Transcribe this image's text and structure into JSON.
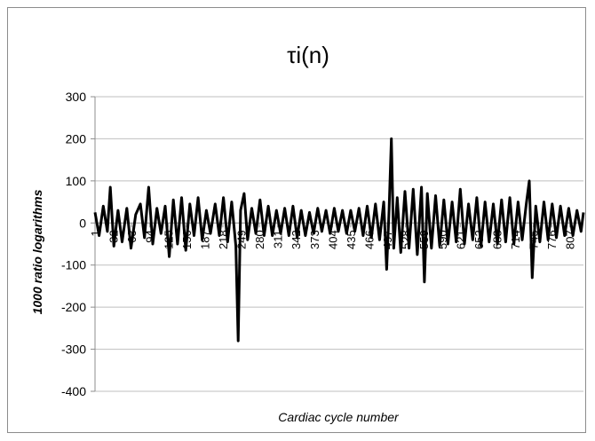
{
  "chart_data": {
    "type": "line",
    "title": "τi(n)",
    "xlabel": "Cardiac cycle number",
    "ylabel": "1000 ratio logarithms",
    "ylim": [
      -400,
      300
    ],
    "y_ticks": [
      300,
      200,
      100,
      0,
      -100,
      -200,
      -300,
      -400
    ],
    "x_tick_labels": [
      "1",
      "32",
      "63",
      "94",
      "125",
      "156",
      "187",
      "218",
      "249",
      "280",
      "311",
      "342",
      "373",
      "404",
      "435",
      "466",
      "497",
      "528",
      "559",
      "590",
      "621",
      "652",
      "683",
      "714",
      "745",
      "776",
      "807"
    ],
    "x_range": [
      1,
      830
    ],
    "grid": "horizontal",
    "legend": "none",
    "series": [
      {
        "color": "#000000",
        "points": [
          [
            1,
            25
          ],
          [
            8,
            -30
          ],
          [
            15,
            40
          ],
          [
            22,
            -20
          ],
          [
            27,
            85
          ],
          [
            33,
            -55
          ],
          [
            40,
            30
          ],
          [
            47,
            -45
          ],
          [
            55,
            35
          ],
          [
            62,
            -60
          ],
          [
            70,
            20
          ],
          [
            78,
            45
          ],
          [
            85,
            -35
          ],
          [
            92,
            85
          ],
          [
            99,
            -50
          ],
          [
            106,
            35
          ],
          [
            113,
            -25
          ],
          [
            120,
            40
          ],
          [
            127,
            -80
          ],
          [
            134,
            55
          ],
          [
            141,
            -50
          ],
          [
            148,
            60
          ],
          [
            155,
            -65
          ],
          [
            162,
            45
          ],
          [
            169,
            -30
          ],
          [
            176,
            60
          ],
          [
            183,
            -40
          ],
          [
            190,
            30
          ],
          [
            197,
            -25
          ],
          [
            205,
            45
          ],
          [
            212,
            -30
          ],
          [
            219,
            60
          ],
          [
            226,
            -45
          ],
          [
            233,
            50
          ],
          [
            240,
            -55
          ],
          [
            244,
            -280
          ],
          [
            248,
            30
          ],
          [
            254,
            70
          ],
          [
            260,
            -40
          ],
          [
            267,
            35
          ],
          [
            274,
            -25
          ],
          [
            281,
            55
          ],
          [
            288,
            -30
          ],
          [
            295,
            40
          ],
          [
            302,
            -30
          ],
          [
            309,
            30
          ],
          [
            316,
            -25
          ],
          [
            323,
            35
          ],
          [
            330,
            -30
          ],
          [
            337,
            40
          ],
          [
            344,
            -35
          ],
          [
            351,
            30
          ],
          [
            358,
            -30
          ],
          [
            365,
            25
          ],
          [
            372,
            -25
          ],
          [
            379,
            35
          ],
          [
            386,
            -20
          ],
          [
            393,
            30
          ],
          [
            400,
            -25
          ],
          [
            407,
            35
          ],
          [
            414,
            -20
          ],
          [
            421,
            30
          ],
          [
            428,
            -25
          ],
          [
            435,
            30
          ],
          [
            442,
            -20
          ],
          [
            449,
            35
          ],
          [
            456,
            -30
          ],
          [
            463,
            40
          ],
          [
            470,
            -35
          ],
          [
            477,
            45
          ],
          [
            484,
            -40
          ],
          [
            491,
            50
          ],
          [
            496,
            -110
          ],
          [
            500,
            30
          ],
          [
            504,
            200
          ],
          [
            508,
            -60
          ],
          [
            514,
            60
          ],
          [
            520,
            -70
          ],
          [
            527,
            75
          ],
          [
            534,
            -60
          ],
          [
            541,
            80
          ],
          [
            548,
            -75
          ],
          [
            555,
            85
          ],
          [
            560,
            -140
          ],
          [
            565,
            70
          ],
          [
            572,
            -60
          ],
          [
            579,
            65
          ],
          [
            586,
            -55
          ],
          [
            593,
            55
          ],
          [
            600,
            -50
          ],
          [
            607,
            50
          ],
          [
            614,
            -45
          ],
          [
            621,
            80
          ],
          [
            628,
            -50
          ],
          [
            635,
            45
          ],
          [
            642,
            -40
          ],
          [
            649,
            60
          ],
          [
            656,
            -55
          ],
          [
            663,
            50
          ],
          [
            670,
            -45
          ],
          [
            677,
            45
          ],
          [
            684,
            -50
          ],
          [
            691,
            55
          ],
          [
            698,
            -45
          ],
          [
            705,
            60
          ],
          [
            712,
            -50
          ],
          [
            719,
            50
          ],
          [
            726,
            -40
          ],
          [
            733,
            45
          ],
          [
            738,
            100
          ],
          [
            743,
            -130
          ],
          [
            749,
            40
          ],
          [
            756,
            -45
          ],
          [
            763,
            50
          ],
          [
            770,
            -40
          ],
          [
            777,
            45
          ],
          [
            784,
            -35
          ],
          [
            791,
            40
          ],
          [
            798,
            -30
          ],
          [
            805,
            35
          ],
          [
            812,
            -30
          ],
          [
            819,
            30
          ],
          [
            826,
            -20
          ],
          [
            830,
            25
          ]
        ]
      }
    ]
  }
}
